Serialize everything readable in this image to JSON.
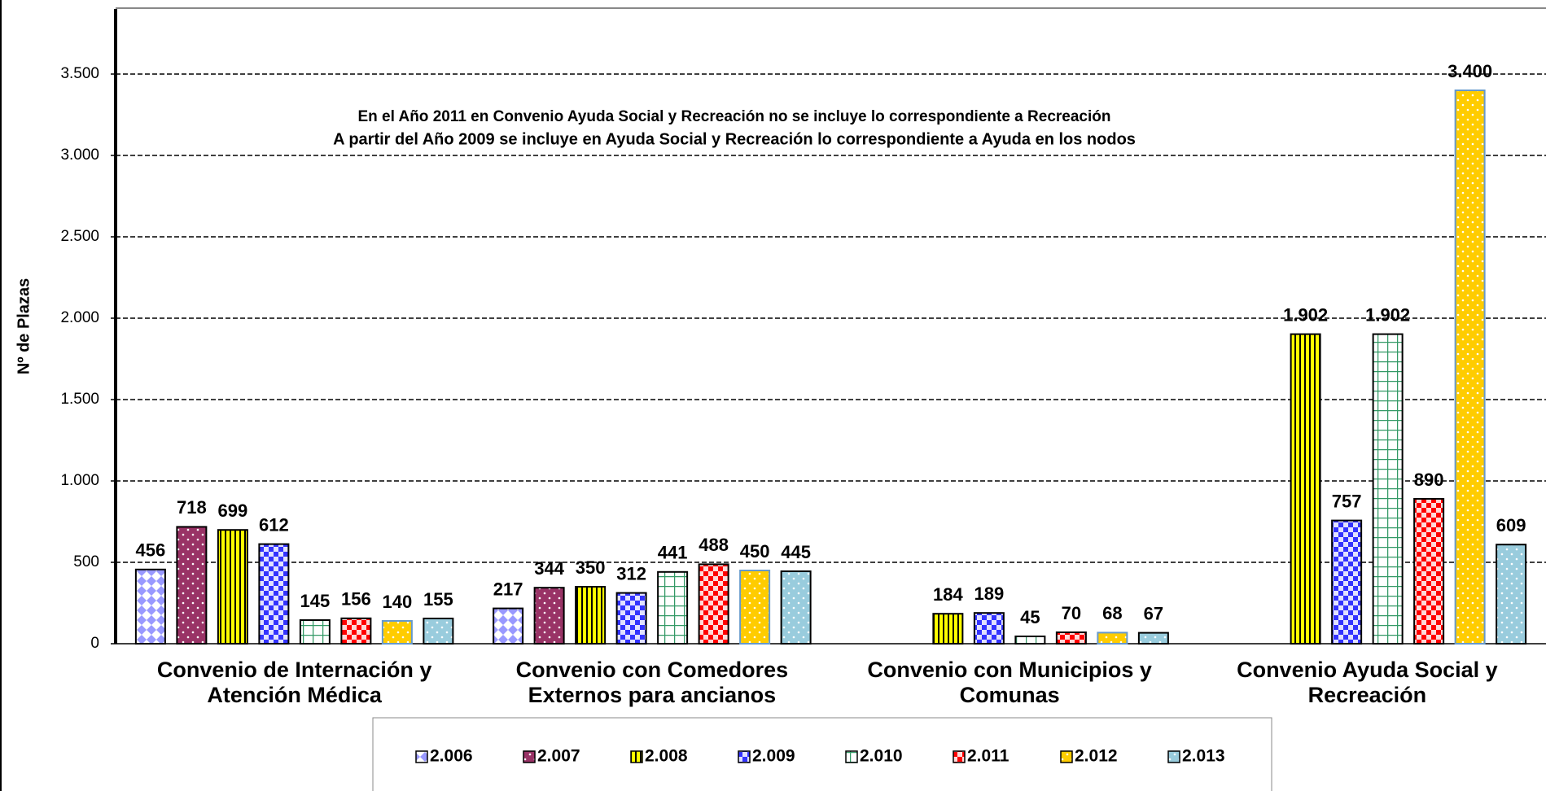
{
  "chart_data": {
    "type": "bar",
    "y_label": "Nº de Plazas",
    "annotations": [
      "En el Año 2011 en Convenio Ayuda Social y Recreación no se incluye lo correspondiente a Recreación",
      "A partir del Año 2009 se incluye en Ayuda Social y Recreación lo correspondiente a Ayuda en los nodos"
    ],
    "categories": [
      "Convenio de Internación y Atención Médica",
      "Convenio con Comedores Externos para ancianos",
      "Convenio con Municipios y Comunas",
      "Convenio Ayuda Social y Recreación"
    ],
    "series": [
      {
        "name": "2.006",
        "color": "#9999ff",
        "values": [
          456,
          217,
          null,
          null
        ]
      },
      {
        "name": "2.007",
        "color": "#993366",
        "values": [
          718,
          344,
          null,
          null
        ]
      },
      {
        "name": "2.008",
        "color": "#ffff00",
        "values": [
          699,
          350,
          184,
          1902
        ],
        "value_labels": [
          "699",
          "350",
          "184",
          "1.902"
        ]
      },
      {
        "name": "2.009",
        "color": "#3333ff",
        "values": [
          612,
          312,
          189,
          757
        ]
      },
      {
        "name": "2.010",
        "color": "#339966",
        "values": [
          145,
          441,
          45,
          1902
        ],
        "value_labels": [
          "145",
          "441",
          "45",
          "1.902"
        ]
      },
      {
        "name": "2.011",
        "color": "#ff0000",
        "values": [
          156,
          488,
          70,
          890
        ]
      },
      {
        "name": "2.012",
        "color": "#ffcc00",
        "values": [
          140,
          450,
          68,
          3400
        ],
        "value_labels": [
          "140",
          "450",
          "68",
          "3.400"
        ]
      },
      {
        "name": "2.013",
        "color": "#99ccdd",
        "values": [
          155,
          445,
          67,
          609
        ]
      }
    ],
    "ylim": [
      0,
      3900
    ],
    "yticks": [
      0,
      500,
      {
        "value": 1000,
        "label": "1.000"
      },
      {
        "value": 1500,
        "label": "1.500"
      },
      {
        "value": 2000,
        "label": "2.000"
      },
      {
        "value": 2500,
        "label": "2.500"
      },
      {
        "value": 3000,
        "label": "3.000"
      },
      {
        "value": 3500,
        "label": "3.500"
      }
    ],
    "grid": true,
    "legend": "bottom"
  }
}
